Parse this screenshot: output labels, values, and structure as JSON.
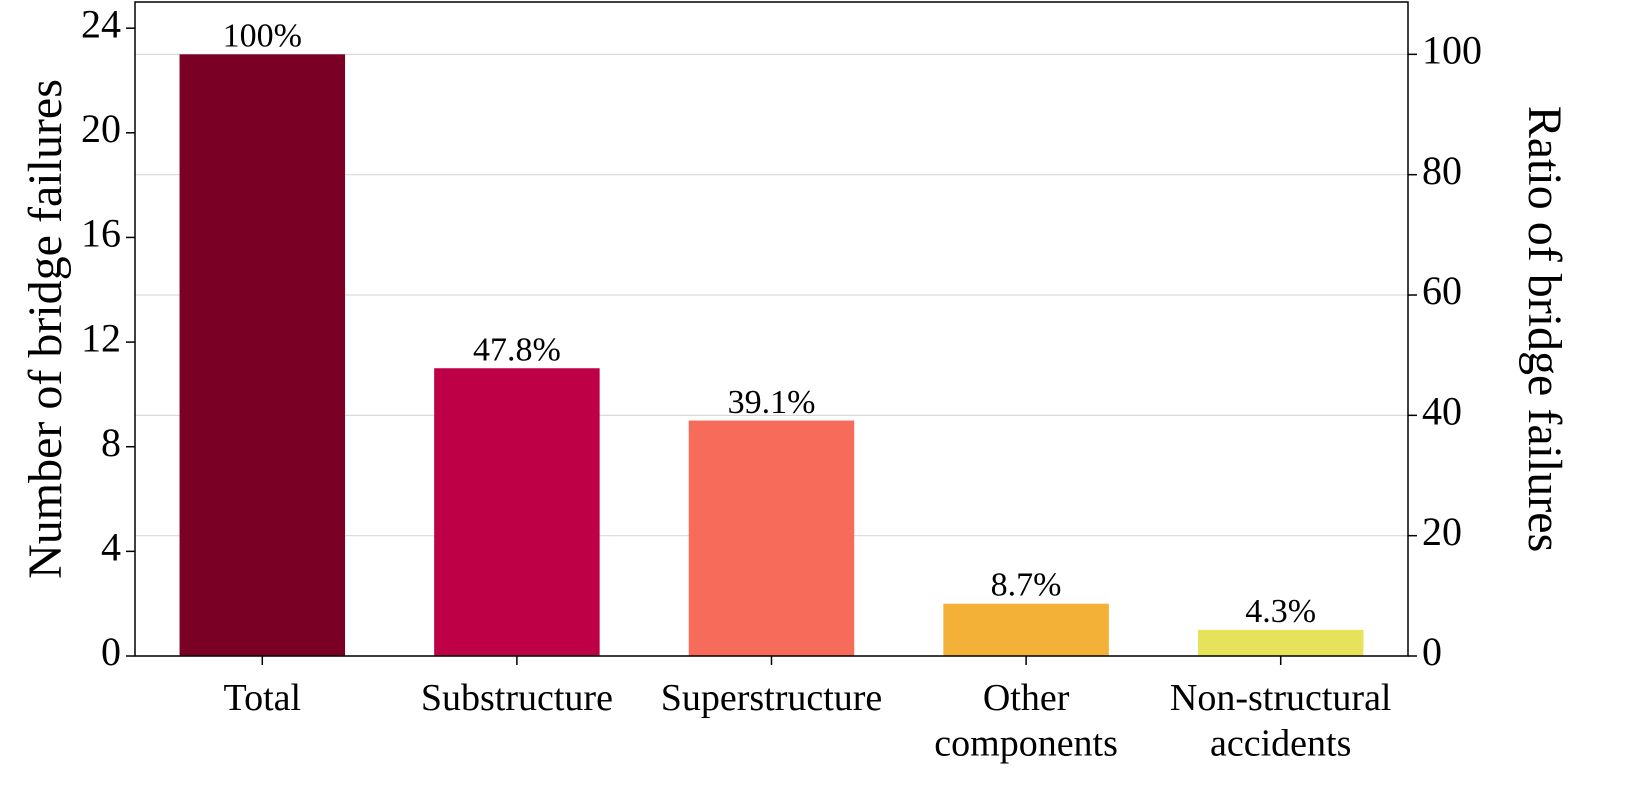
{
  "chart_data": {
    "type": "bar",
    "categories": [
      "Total",
      "Substructure",
      "Superstructure",
      "Other\ncomponents",
      "Non-structural\naccidents"
    ],
    "values": [
      23,
      11,
      9,
      2,
      1
    ],
    "colors": [
      "#7b0025",
      "#be0046",
      "#f66b59",
      "#f3b137",
      "#e6e25a"
    ],
    "ratio_values": [
      100,
      47.8,
      39.1,
      8.7,
      4.3
    ],
    "ratio_value_labels": [
      "100%",
      "47.8%",
      "39.1%",
      "8.7%",
      "4.3%"
    ],
    "ylabel": "Number of bridge failures",
    "y2label": "Ratio of bridge failures",
    "ylim": [
      0,
      25
    ],
    "yticks": [
      0,
      4,
      8,
      12,
      16,
      20,
      24
    ],
    "y2lim": [
      0,
      108.7
    ],
    "y2ticks": [
      0,
      20,
      40,
      60,
      80,
      100
    ],
    "grid": true
  }
}
